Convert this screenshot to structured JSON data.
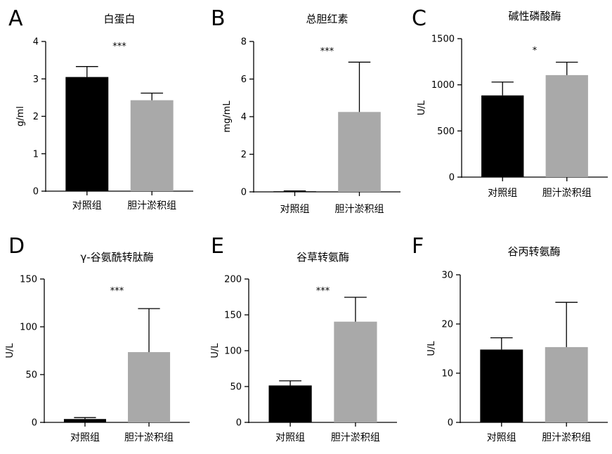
{
  "chart_data": [
    {
      "panel": "A",
      "title": "白蛋白",
      "type": "bar",
      "ylabel": "g/ml",
      "xlabel": "",
      "ylim": [
        0,
        4
      ],
      "yticks": [
        0,
        1,
        2,
        3,
        4
      ],
      "categories": [
        "对照组",
        "胆汁淤积组"
      ],
      "values": [
        3.05,
        2.43
      ],
      "error_upper": [
        3.33,
        2.62
      ],
      "bar_colors": [
        "#000000",
        "#a9a9a9"
      ],
      "significance": "***",
      "grid": false
    },
    {
      "panel": "B",
      "title": "总胆红素",
      "type": "bar",
      "ylabel": "mg/mL",
      "xlabel": "",
      "ylim": [
        0,
        8
      ],
      "yticks": [
        0,
        2,
        4,
        6,
        8
      ],
      "categories": [
        "对照组",
        "胆汁淤积组"
      ],
      "values": [
        0.03,
        4.25
      ],
      "error_upper": [
        0.05,
        6.9
      ],
      "bar_colors": [
        "#000000",
        "#a9a9a9"
      ],
      "significance": "***",
      "grid": false
    },
    {
      "panel": "C",
      "title": "碱性磷酸酶",
      "type": "bar",
      "ylabel": "U/L",
      "xlabel": "",
      "ylim": [
        0,
        1500
      ],
      "yticks": [
        0,
        500,
        1000,
        1500
      ],
      "categories": [
        "对照组",
        "胆汁淤积组"
      ],
      "values": [
        885,
        1105
      ],
      "error_upper": [
        1030,
        1245
      ],
      "bar_colors": [
        "#000000",
        "#a9a9a9"
      ],
      "significance": "*",
      "grid": false
    },
    {
      "panel": "D",
      "title": "γ-谷氨酰转肽酶",
      "type": "bar",
      "ylabel": "U/L",
      "xlabel": "",
      "ylim": [
        0,
        150
      ],
      "yticks": [
        0,
        50,
        100,
        150
      ],
      "categories": [
        "对照组",
        "胆汁淤积组"
      ],
      "values": [
        3.5,
        73.5
      ],
      "error_upper": [
        5,
        119
      ],
      "bar_colors": [
        "#000000",
        "#a9a9a9"
      ],
      "significance": "***",
      "grid": false
    },
    {
      "panel": "E",
      "title": "谷草转氨酶",
      "type": "bar",
      "ylabel": "U/L",
      "xlabel": "",
      "ylim": [
        0,
        200
      ],
      "yticks": [
        0,
        50,
        100,
        150,
        200
      ],
      "categories": [
        "对照组",
        "胆汁淤积组"
      ],
      "values": [
        51.5,
        140.5
      ],
      "error_upper": [
        58,
        174.5
      ],
      "bar_colors": [
        "#000000",
        "#a9a9a9"
      ],
      "significance": "***",
      "grid": false
    },
    {
      "panel": "F",
      "title": "谷丙转氨酶",
      "type": "bar",
      "ylabel": "U/L",
      "xlabel": "",
      "ylim": [
        0,
        30
      ],
      "yticks": [
        0,
        10,
        20,
        30
      ],
      "categories": [
        "对照组",
        "胆汁淤积组"
      ],
      "values": [
        14.8,
        15.3
      ],
      "error_upper": [
        17.2,
        24.4
      ],
      "bar_colors": [
        "#000000",
        "#a9a9a9"
      ],
      "significance": "",
      "grid": false
    }
  ]
}
